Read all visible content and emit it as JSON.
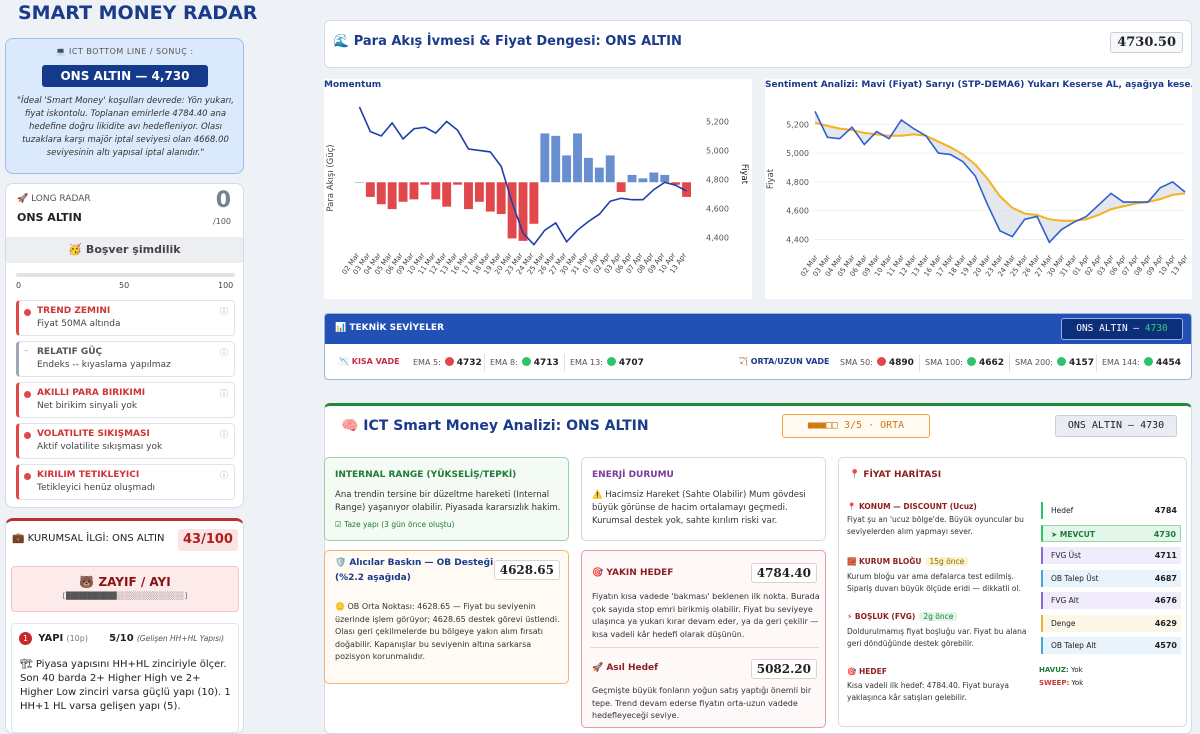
{
  "app_title": "SMART MONEY RADAR",
  "ict": {
    "header": "💻 ICT BOTTOM LINE / SONUÇ :",
    "pill": "ONS ALTIN  —  4,730",
    "desc": "\"İdeal 'Smart Money' koşulları devrede: Yön yukarı, fiyat iskontolu. Toplanan emirlerle 4784.40 ana hedefine doğru likidite avı hedefleniyor. Olası tuzaklara karşı majör iptal seviyesi olan 4668.00 seviyesinin altı yapısal iptal alanıdır.\""
  },
  "long_radar": {
    "header": "🚀 LONG RADAR",
    "name": "ONS ALTIN",
    "score": "0",
    "score_den": "/100",
    "status": "🥳 Boşver şimdilik",
    "progress": 0,
    "scale": [
      "0",
      "50",
      "100"
    ],
    "items": [
      {
        "title": "TREND ZEMINI",
        "desc": "Fiyat 50MA altında",
        "neutral": false
      },
      {
        "title": "RELATIF GÜÇ",
        "desc": "Endeks -- kıyaslama yapılmaz",
        "neutral": true
      },
      {
        "title": "AKILLI PARA BIRIKIMI",
        "desc": "Net birikim sinyali yok",
        "neutral": false
      },
      {
        "title": "VOLATILITE SIKIŞMASI",
        "desc": "Aktif volatilite sıkışması yok",
        "neutral": false
      },
      {
        "title": "KIRILIM TETIKLEYICI",
        "desc": "Tetikleyici henüz oluşmadı",
        "neutral": false
      }
    ],
    "info_glyph": "ⓘ"
  },
  "kurumsal": {
    "header": "💼 KURUMSAL İLGİ: ONS ALTIN",
    "value": "43/100",
    "zayif": "🐻 ZAYIF / AYI",
    "zbar": "[████████████░░░░░░░░░░░░░░░░]",
    "yapi": {
      "num": "1",
      "title": "YAPI",
      "sub": "(10p)",
      "score": "5/10",
      "score_note": "(Gelişen HH+HL Yapısı)",
      "desc": "🏗 Piyasa yapısını HH+HL zinciriyle ölçer. Son 40 barda 2+ Higher High ve 2+ Higher Low zinciri varsa güçlü yapı (10). 1 HH+1 HL varsa gelişen yapı (5)."
    }
  },
  "para": {
    "title": "🌊 Para Akış İvmesi & Fiyat Dengesi: ONS ALTIN",
    "value": "4730.50"
  },
  "chart_data": [
    {
      "type": "bar",
      "title": "Momentum",
      "ylabel": "Para Akışı (Güç)",
      "y2label": "Fiyat",
      "y2ticks": [
        "5,200",
        "5,000",
        "4,800",
        "4,600",
        "4,400"
      ],
      "y2lim": [
        4320,
        5300
      ],
      "categories": [
        "02 Mar",
        "03 Mar",
        "04 Mar",
        "05 Mar",
        "06 Mar",
        "09 Mar",
        "10 Mar",
        "11 Mar",
        "12 Mar",
        "13 Mar",
        "16 Mar",
        "17 Mar",
        "18 Mar",
        "19 Mar",
        "20 Mar",
        "23 Mar",
        "24 Mar",
        "25 Mar",
        "26 Mar",
        "27 Mar",
        "30 Mar",
        "31 Mar",
        "01 Apr",
        "02 Apr",
        "03 Apr",
        "06 Apr",
        "07 Apr",
        "08 Apr",
        "09 Apr",
        "10 Apr",
        "13 Apr"
      ],
      "series": [
        {
          "values": [
            0,
            -0.3,
            -0.45,
            -0.55,
            -0.4,
            -0.35,
            -0.05,
            -0.35,
            -0.5,
            -0.05,
            -0.55,
            -0.4,
            -0.6,
            -0.65,
            -1.15,
            -1.2,
            -0.85,
            1.0,
            0.95,
            0.55,
            1.0,
            0.5,
            0.3,
            0.55,
            -0.2,
            0.15,
            0.08,
            0.2,
            0.15,
            -0.05,
            -0.3
          ]
        },
        {
          "values": [
            5300,
            5130,
            5100,
            5190,
            5080,
            5150,
            5160,
            5120,
            5200,
            5140,
            5010,
            5000,
            4990,
            4890,
            4640,
            4430,
            4350,
            4450,
            4500,
            4370,
            4450,
            4510,
            4560,
            4650,
            4670,
            4660,
            4660,
            4730,
            4780,
            4760,
            4720
          ]
        }
      ]
    },
    {
      "type": "line",
      "title": "Sentiment Analizi: Mavi (Fiyat) Sarıyı (STP-DEMA6) Yukarı Keserse AL, aşağıya kese...",
      "ylabel": "Fiyat",
      "yticks": [
        "5,200",
        "5,000",
        "4,800",
        "4,600",
        "4,400"
      ],
      "ylim": [
        4320,
        5320
      ],
      "categories": [
        "02 Mar",
        "03 Mar",
        "04 Mar",
        "05 Mar",
        "06 Mar",
        "09 Mar",
        "10 Mar",
        "11 Mar",
        "12 Mar",
        "13 Mar",
        "16 Mar",
        "17 Mar",
        "18 Mar",
        "19 Mar",
        "20 Mar",
        "23 Mar",
        "24 Mar",
        "25 Mar",
        "26 Mar",
        "27 Mar",
        "30 Mar",
        "31 Mar",
        "01 Apr",
        "02 Apr",
        "03 Apr",
        "06 Apr",
        "07 Apr",
        "08 Apr",
        "09 Apr",
        "10 Apr",
        "13 Apr"
      ],
      "series": [
        {
          "values": [
            5290,
            5110,
            5100,
            5180,
            5060,
            5150,
            5100,
            5230,
            5170,
            5120,
            5000,
            4990,
            4940,
            4840,
            4640,
            4460,
            4420,
            4540,
            4560,
            4380,
            4470,
            4520,
            4560,
            4640,
            4720,
            4660,
            4660,
            4660,
            4760,
            4800,
            4730
          ]
        },
        {
          "values": [
            5210,
            5190,
            5170,
            5160,
            5140,
            5130,
            5120,
            5120,
            5130,
            5120,
            5080,
            5040,
            4990,
            4920,
            4820,
            4700,
            4620,
            4580,
            4570,
            4540,
            4530,
            4530,
            4540,
            4570,
            4610,
            4630,
            4650,
            4660,
            4680,
            4710,
            4720
          ]
        }
      ]
    }
  ],
  "teknik": {
    "header": "📊 TEKNİK SEVİYELER",
    "pill_name": "ONS ALTIN —",
    "pill_value": "4730",
    "kisa_label": "📉 KISA VADE",
    "orta_label": "🏹 ORTA/UZUN VADE",
    "kisa": [
      {
        "label": "EMA 5:",
        "value": "4732",
        "color": "#e04848"
      },
      {
        "label": "EMA 8:",
        "value": "4713",
        "color": "#2ec26a"
      },
      {
        "label": "EMA 13:",
        "value": "4707",
        "color": "#2ec26a"
      }
    ],
    "orta": [
      {
        "label": "SMA 50:",
        "value": "4890",
        "color": "#e04848"
      },
      {
        "label": "SMA 100:",
        "value": "4662",
        "color": "#2ec26a"
      },
      {
        "label": "SMA 200:",
        "value": "4157",
        "color": "#2ec26a"
      },
      {
        "label": "EMA 144:",
        "value": "4454",
        "color": "#2ec26a"
      }
    ]
  },
  "ict_main": {
    "title": "🧠 ICT Smart Money Analizi: ONS ALTIN",
    "score": "■■■□□   3/5 · ORTA",
    "pill": "ONS ALTIN — 4730",
    "internal": {
      "title": "INTERNAL RANGE (YÜKSELİŞ/TEPKİ)",
      "desc": "Ana trendin tersine bir düzeltme hareketi (Internal Range) yaşanıyor olabilir. Piyasada kararsızlık hakim.",
      "note": "☑ Taze yapı (3 gün önce oluştu)"
    },
    "enerji": {
      "title": "ENERJİ DURUMU",
      "desc": "⚠️ Hacimsiz Hareket (Sahte Olabilir) Mum gövdesi büyük görünse de hacim ortalamayı geçmedi. Kurumsal destek yok, sahte kırılım riski var."
    },
    "alici": {
      "title": "🛡️ Alıcılar Baskın — OB Desteği (%2.2 aşağıda)",
      "value": "4628.65",
      "desc": "🪙 OB Orta Noktası: 4628.65 — Fiyat bu seviyenin üzerinde işlem görüyor; 4628.65 destek görevi üstlendi. Olası geri çekilmelerde bu bölgeye yakın alım fırsatı doğabilir. Kapanışlar bu seviyenin altına sarkarsa pozisyon korunmalıdır."
    },
    "yakin": {
      "title": "🎯 YAKIN HEDEF",
      "value": "4784.40",
      "desc": "Fiyatın kısa vadede 'bakması' beklenen ilk nokta. Burada çok sayıda stop emri birikmiş olabilir. Fiyat bu seviyeye ulaşınca ya yukarı kırar devam eder, ya da geri çekilir — kısa vadeli kâr hedefi olarak düşünün."
    },
    "asil": {
      "title": "🚀 Asıl Hedef",
      "value": "5082.20",
      "desc": "Geçmişte büyük fonların yoğun satış yaptığı önemli bir tepe. Trend devam ederse fiyatın orta-uzun vadede hedefleyeceği seviye."
    }
  },
  "fiyat_haritasi": {
    "title": "📍 FİYAT HARİTASI",
    "konum_t": "📍 KONUM — DISCOUNT (Ucuz)",
    "konum_d": "Fiyat şu an 'ucuz bölge'de. Büyük oyuncular bu seviyelerden alım yapmayı sever.",
    "blok_t": "🧱 KURUM BLOĞU",
    "blok_badge": "15g önce",
    "blok_d": "Kurum bloğu var ama defalarca test edilmiş. Sipariş duvarı büyük ölçüde eridi — dikkatli ol.",
    "fvg_t": "⚡ BOŞLUK (FVG)",
    "fvg_badge": "2g önce",
    "fvg_d": "Doldurulmamış fiyat boşluğu var. Fiyat bu alana geri döndüğünde destek görebilir.",
    "hedef_t": "🎯 HEDEF",
    "hedef_d": "Kısa vadeli ilk hedef: 4784.40. Fiyat buraya yaklaşınca kâr satışları gelebilir.",
    "levels": [
      {
        "label": "Hedef",
        "value": "4784",
        "color": "#2ec26a",
        "bg": "#ffffff"
      },
      {
        "label": "➤ MEVCUT",
        "value": "4730",
        "color": "#2ec26a",
        "bg": "#e3f6ea"
      },
      {
        "label": "FVG Üst",
        "value": "4711",
        "color": "#8a6ad6",
        "bg": "#f1ecfc"
      },
      {
        "label": "OB Talep Üst",
        "value": "4687",
        "color": "#4aa3d8",
        "bg": "#e8f3fb"
      },
      {
        "label": "FVG Alt",
        "value": "4676",
        "color": "#8a6ad6",
        "bg": "#f1ecfc"
      },
      {
        "label": "Denge",
        "value": "4629",
        "color": "#e8b23a",
        "bg": "#fdf7e7"
      },
      {
        "label": "OB Talep Alt",
        "value": "4570",
        "color": "#4aa3d8",
        "bg": "#e8f3fb"
      }
    ],
    "havuz_label": "HAVUZ:",
    "havuz_value": "Yok",
    "sweep_label": "SWEEP:",
    "sweep_value": "Yok"
  },
  "colors": {
    "bar_pos": "#6a8fd0",
    "bar_neg": "#e0484c",
    "price_line": "#1f3fa8",
    "dema_line": "#f5b21e",
    "sent_line": "#2f5fd0"
  }
}
